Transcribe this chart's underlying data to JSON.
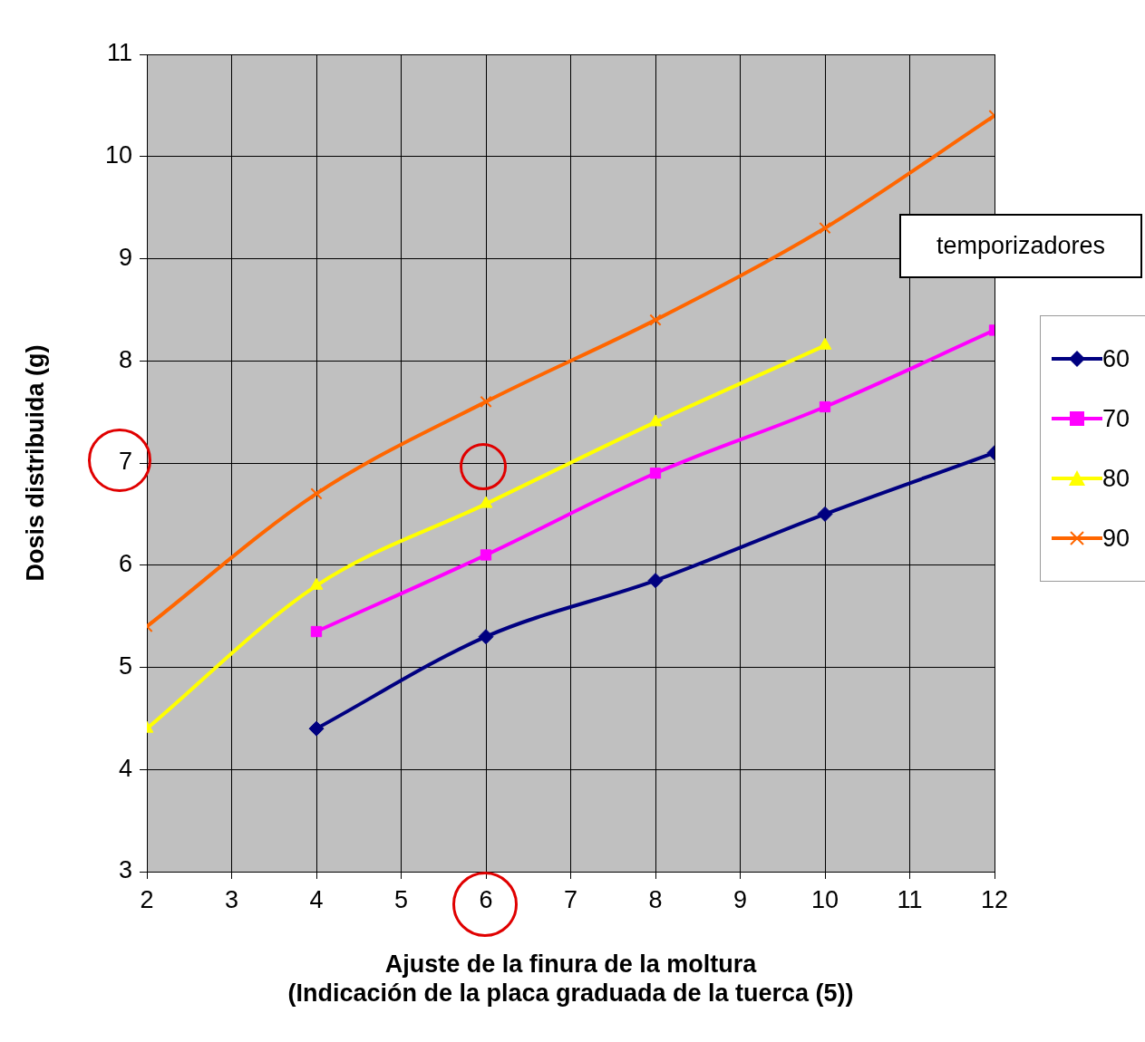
{
  "chart_data": {
    "type": "line",
    "xlabel": "Ajuste de la finura de la moltura\n(Indicación de la placa graduada de la tuerca (5))",
    "ylabel": "Dosis distribuida (g)",
    "legend_title": "temporizadores",
    "legend": "right",
    "grid": true,
    "x": [
      2,
      4,
      6,
      8,
      10,
      12
    ],
    "xlim": [
      2,
      12
    ],
    "xticks": [
      2,
      3,
      4,
      5,
      6,
      7,
      8,
      9,
      10,
      11,
      12
    ],
    "ylim": [
      3,
      11
    ],
    "yticks": [
      3,
      4,
      5,
      6,
      7,
      8,
      9,
      10,
      11
    ],
    "series": [
      {
        "name": "60",
        "color": "#000080",
        "marker": "diamond",
        "values": [
          null,
          4.4,
          5.3,
          5.85,
          6.5,
          7.1
        ]
      },
      {
        "name": "70",
        "color": "#ff00ff",
        "marker": "square",
        "values": [
          null,
          5.35,
          6.1,
          6.9,
          7.55,
          8.3
        ]
      },
      {
        "name": "80",
        "color": "#ffff00",
        "marker": "triangle",
        "values": [
          4.4,
          5.8,
          6.6,
          7.4,
          8.15,
          null
        ]
      },
      {
        "name": "90",
        "color": "#ff6600",
        "marker": "cross",
        "values": [
          5.4,
          6.7,
          7.6,
          8.4,
          9.3,
          10.4
        ]
      }
    ]
  }
}
